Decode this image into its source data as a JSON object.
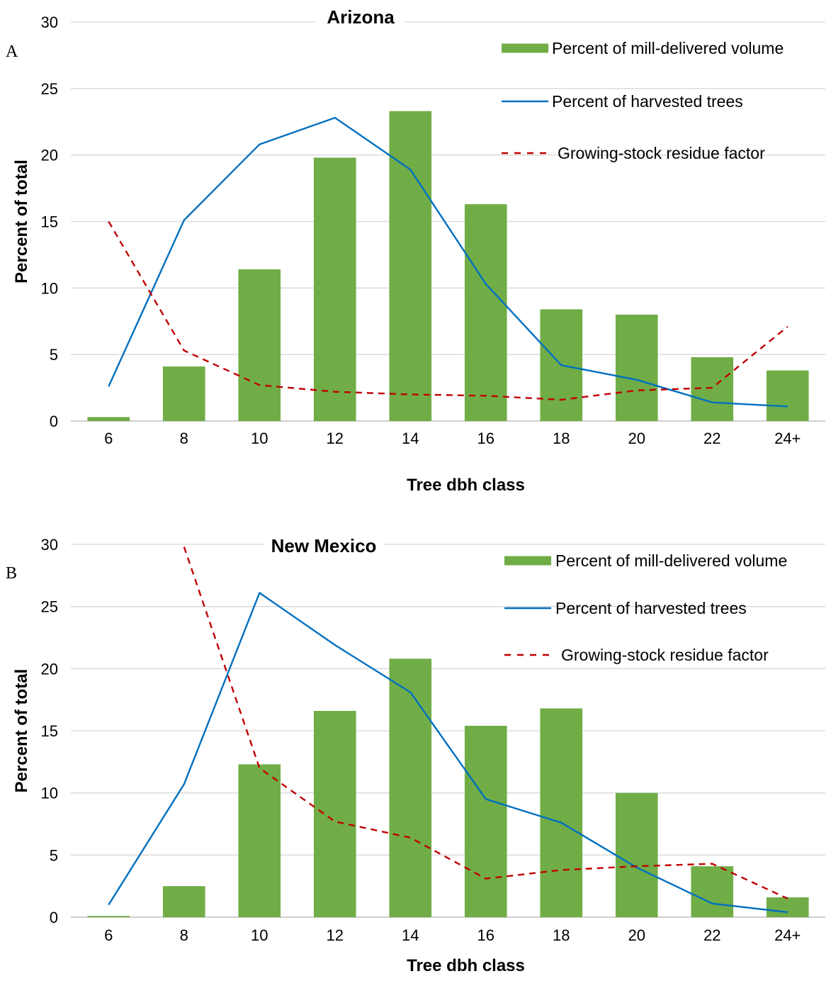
{
  "chart_data": [
    {
      "type": "bar",
      "panel_label": "A",
      "title": "Arizona",
      "xlabel": "Tree dbh class",
      "ylabel": "Percent of total",
      "categories": [
        "6",
        "8",
        "10",
        "12",
        "14",
        "16",
        "18",
        "20",
        "22",
        "24+"
      ],
      "ylim": [
        0,
        30
      ],
      "yticks": [
        0,
        5,
        10,
        15,
        20,
        25,
        30
      ],
      "grid": true,
      "legend_position": "top-right",
      "series": [
        {
          "name": "Percent of mill-delivered volume",
          "kind": "bar",
          "color": "#70ad47",
          "values": [
            0.3,
            4.1,
            11.4,
            19.8,
            23.3,
            16.3,
            8.4,
            8.0,
            4.8,
            3.8
          ]
        },
        {
          "name": "Percent of harvested trees",
          "kind": "line",
          "color": "#0070c0",
          "values": [
            2.6,
            15.1,
            20.8,
            22.8,
            18.9,
            10.3,
            4.2,
            3.1,
            1.4,
            1.1
          ]
        },
        {
          "name": "Growing-stock residue factor",
          "kind": "dashed-line",
          "color": "#c00000",
          "values": [
            15.0,
            5.3,
            2.7,
            2.2,
            2.0,
            1.9,
            1.6,
            2.3,
            2.5,
            7.1
          ]
        }
      ]
    },
    {
      "type": "bar",
      "panel_label": "B",
      "title": "New Mexico",
      "xlabel": "Tree dbh class",
      "ylabel": "Percent of total",
      "categories": [
        "6",
        "8",
        "10",
        "12",
        "14",
        "16",
        "18",
        "20",
        "22",
        "24+"
      ],
      "ylim": [
        0,
        30
      ],
      "yticks": [
        0,
        5,
        10,
        15,
        20,
        25,
        30
      ],
      "grid": true,
      "legend_position": "top-right",
      "series": [
        {
          "name": "Percent of mill-delivered volume",
          "kind": "bar",
          "color": "#70ad47",
          "values": [
            0.1,
            2.5,
            12.3,
            16.6,
            20.8,
            15.4,
            16.8,
            10.0,
            4.1,
            1.6
          ]
        },
        {
          "name": "Percent of harvested trees",
          "kind": "line",
          "color": "#0070c0",
          "values": [
            1.0,
            10.7,
            26.1,
            21.9,
            18.1,
            9.5,
            7.6,
            4.0,
            1.1,
            0.4
          ]
        },
        {
          "name": "Growing-stock residue factor",
          "kind": "dashed-line",
          "color": "#c00000",
          "values": [
            null,
            29.8,
            12.0,
            7.7,
            6.4,
            3.1,
            3.8,
            4.1,
            4.3,
            1.5
          ]
        }
      ]
    }
  ]
}
